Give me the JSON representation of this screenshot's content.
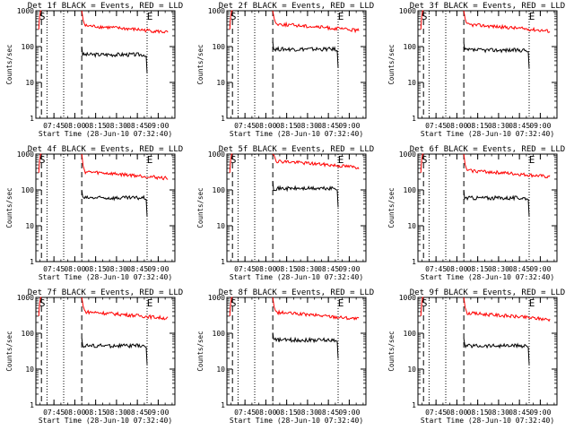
{
  "figure": {
    "ylabel": "Counts/sec",
    "ytick_labels": [
      "1",
      "10",
      "100",
      "1000"
    ],
    "xtick_labels": [
      "07:45",
      "08:00",
      "08:15",
      "08:30",
      "08:45",
      "09:00"
    ],
    "xlabel": "Start Time (28-Jun-10 07:32:40)",
    "start_marker": "S",
    "end_marker": "E",
    "event_color": "#000000",
    "lld_color": "#ff0000"
  },
  "chart_data": [
    {
      "type": "line",
      "title": "Det 1f BLACK = Events, RED = LLD",
      "yscale": "log",
      "ylim": [
        1,
        1000
      ],
      "xticks": [
        "07:45",
        "08:00",
        "08:15",
        "08:30",
        "08:45",
        "09:00"
      ],
      "marker_times": {
        "dotted": [
          "07:40",
          "07:52",
          "08:52"
        ],
        "dashed": [
          "07:36",
          "08:05"
        ]
      },
      "series": [
        {
          "name": "Events",
          "color": "#000000",
          "start": "08:05",
          "end": "08:52",
          "level": 60
        },
        {
          "name": "LLD",
          "color": "#ff0000",
          "start": "08:05",
          "end": "09:07",
          "level": 250
        }
      ]
    },
    {
      "type": "line",
      "title": "Det 2f BLACK = Events, RED = LLD",
      "yscale": "log",
      "ylim": [
        1,
        1000
      ],
      "xticks": [
        "07:45",
        "08:00",
        "08:15",
        "08:30",
        "08:45",
        "09:00"
      ],
      "marker_times": {
        "dotted": [
          "07:40",
          "07:52",
          "08:52"
        ],
        "dashed": [
          "07:36",
          "08:05"
        ]
      },
      "series": [
        {
          "name": "Events",
          "color": "#000000",
          "start": "08:05",
          "end": "08:52",
          "level": 85
        },
        {
          "name": "LLD",
          "color": "#ff0000",
          "start": "08:05",
          "end": "09:07",
          "level": 280
        }
      ]
    },
    {
      "type": "line",
      "title": "Det 3f BLACK = Events, RED = LLD",
      "yscale": "log",
      "ylim": [
        1,
        1000
      ],
      "xticks": [
        "07:45",
        "08:00",
        "08:15",
        "08:30",
        "08:45",
        "09:00"
      ],
      "marker_times": {
        "dotted": [
          "07:40",
          "07:52",
          "08:52"
        ],
        "dashed": [
          "07:36",
          "08:05"
        ]
      },
      "series": [
        {
          "name": "Events",
          "color": "#000000",
          "start": "08:05",
          "end": "08:52",
          "level": 80
        },
        {
          "name": "LLD",
          "color": "#ff0000",
          "start": "08:05",
          "end": "09:07",
          "level": 270
        }
      ]
    },
    {
      "type": "line",
      "title": "Det 4f BLACK = Events, RED = LLD",
      "yscale": "log",
      "ylim": [
        1,
        1000
      ],
      "xticks": [
        "07:45",
        "08:00",
        "08:15",
        "08:30",
        "08:45",
        "09:00"
      ],
      "marker_times": {
        "dotted": [
          "07:40",
          "07:52",
          "08:52"
        ],
        "dashed": [
          "07:36",
          "08:05"
        ]
      },
      "series": [
        {
          "name": "Events",
          "color": "#000000",
          "start": "08:05",
          "end": "08:52",
          "level": 60
        },
        {
          "name": "LLD",
          "color": "#ff0000",
          "start": "08:05",
          "end": "09:07",
          "level": 210
        }
      ]
    },
    {
      "type": "line",
      "title": "Det 5f BLACK = Events, RED = LLD",
      "yscale": "log",
      "ylim": [
        1,
        1000
      ],
      "xticks": [
        "07:45",
        "08:00",
        "08:15",
        "08:30",
        "08:45",
        "09:00"
      ],
      "marker_times": {
        "dotted": [
          "07:40",
          "07:52",
          "08:52"
        ],
        "dashed": [
          "07:36",
          "08:05"
        ]
      },
      "series": [
        {
          "name": "Events",
          "color": "#000000",
          "start": "08:05",
          "end": "08:52",
          "level": 110
        },
        {
          "name": "LLD",
          "color": "#ff0000",
          "start": "08:05",
          "end": "09:07",
          "level": 420
        }
      ]
    },
    {
      "type": "line",
      "title": "Det 6f BLACK = Events, RED = LLD",
      "yscale": "log",
      "ylim": [
        1,
        1000
      ],
      "xticks": [
        "07:45",
        "08:00",
        "08:15",
        "08:30",
        "08:45",
        "09:00"
      ],
      "marker_times": {
        "dotted": [
          "07:40",
          "07:52",
          "08:52"
        ],
        "dashed": [
          "07:36",
          "08:05"
        ]
      },
      "series": [
        {
          "name": "Events",
          "color": "#000000",
          "start": "08:05",
          "end": "08:52",
          "level": 60
        },
        {
          "name": "LLD",
          "color": "#ff0000",
          "start": "08:05",
          "end": "09:07",
          "level": 230
        }
      ]
    },
    {
      "type": "line",
      "title": "Det 7f BLACK = Events, RED = LLD",
      "yscale": "log",
      "ylim": [
        1,
        1000
      ],
      "xticks": [
        "07:45",
        "08:00",
        "08:15",
        "08:30",
        "08:45",
        "09:00"
      ],
      "marker_times": {
        "dotted": [
          "07:40",
          "07:52",
          "08:52"
        ],
        "dashed": [
          "07:36",
          "08:05"
        ]
      },
      "series": [
        {
          "name": "Events",
          "color": "#000000",
          "start": "08:05",
          "end": "08:52",
          "level": 45
        },
        {
          "name": "LLD",
          "color": "#ff0000",
          "start": "08:05",
          "end": "09:07",
          "level": 260
        }
      ]
    },
    {
      "type": "line",
      "title": "Det 8f BLACK = Events, RED = LLD",
      "yscale": "log",
      "ylim": [
        1,
        1000
      ],
      "xticks": [
        "07:45",
        "08:00",
        "08:15",
        "08:30",
        "08:45",
        "09:00"
      ],
      "marker_times": {
        "dotted": [
          "07:40",
          "07:52",
          "08:52"
        ],
        "dashed": [
          "07:36",
          "08:05"
        ]
      },
      "series": [
        {
          "name": "Events",
          "color": "#000000",
          "start": "08:05",
          "end": "08:52",
          "level": 65
        },
        {
          "name": "LLD",
          "color": "#ff0000",
          "start": "08:05",
          "end": "09:07",
          "level": 250
        }
      ]
    },
    {
      "type": "line",
      "title": "Det 9f BLACK = Events, RED = LLD",
      "yscale": "log",
      "ylim": [
        1,
        1000
      ],
      "xticks": [
        "07:45",
        "08:00",
        "08:15",
        "08:30",
        "08:45",
        "09:00"
      ],
      "marker_times": {
        "dotted": [
          "07:40",
          "07:52",
          "08:52"
        ],
        "dashed": [
          "07:36",
          "08:05"
        ]
      },
      "series": [
        {
          "name": "Events",
          "color": "#000000",
          "start": "08:05",
          "end": "08:52",
          "level": 45
        },
        {
          "name": "LLD",
          "color": "#ff0000",
          "start": "08:05",
          "end": "09:07",
          "level": 240
        }
      ]
    }
  ]
}
